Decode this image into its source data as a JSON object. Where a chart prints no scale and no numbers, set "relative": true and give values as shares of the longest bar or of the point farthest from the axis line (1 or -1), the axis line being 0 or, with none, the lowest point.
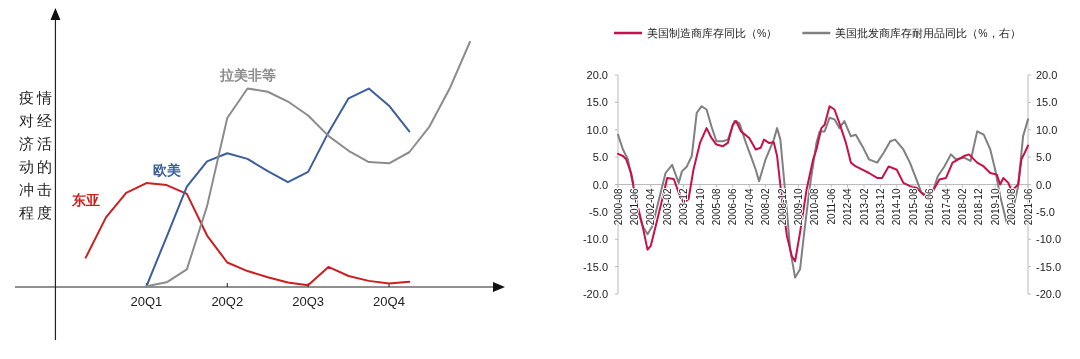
{
  "chart_data": [
    {
      "type": "line",
      "relative": true,
      "ylabel": "疫情对经济活动的冲击程度",
      "categories": [
        null,
        null,
        null,
        null,
        null,
        null,
        "20Q1",
        null,
        null,
        null,
        "20Q2",
        null,
        null,
        null,
        "20Q3",
        null,
        null,
        null,
        "20Q4",
        null,
        null,
        null,
        null
      ],
      "series": [
        {
          "name": "东亚",
          "color": "#cc1f1f",
          "values": [
            null,
            null,
            null,
            0.12,
            0.284,
            0.384,
            0.424,
            0.416,
            0.38,
            0.21,
            0.1,
            0.065,
            0.04,
            0.018,
            0.007,
            0.082,
            0.045,
            0.025,
            0.014,
            0.021,
            null,
            null,
            null
          ]
        },
        {
          "name": "欧美",
          "color": "#3b5e9e",
          "values": [
            null,
            null,
            null,
            null,
            null,
            null,
            0.003,
            0.205,
            0.41,
            0.513,
            0.546,
            0.523,
            0.473,
            0.428,
            0.47,
            0.63,
            0.77,
            0.81,
            0.74,
            0.635,
            null,
            null,
            null
          ]
        },
        {
          "name": "拉美非等",
          "color": "#8c8c8c",
          "values": [
            null,
            null,
            null,
            null,
            null,
            null,
            0.003,
            0.019,
            0.072,
            0.33,
            0.69,
            0.81,
            0.797,
            0.757,
            0.7,
            0.617,
            0.556,
            0.51,
            0.505,
            0.55,
            0.655,
            0.81,
            1.0
          ]
        }
      ]
    },
    {
      "type": "line",
      "legend": "top",
      "xlim": [
        "2000-08",
        "2021-06"
      ],
      "xticks": [
        "2000-08",
        "2001-06",
        "2002-04",
        "2003-02",
        "2003-12",
        "2004-10",
        "2005-08",
        "2006-06",
        "2007-04",
        "2008-02",
        "2008-12",
        "2009-10",
        "2010-08",
        "2011-06",
        "2012-04",
        "2013-02",
        "2013-12",
        "2014-10",
        "2015-08",
        "2016-06",
        "2017-04",
        "2018-02",
        "2018-12",
        "2019-10",
        "2020-08",
        "2021-06"
      ],
      "ylim": [
        -20,
        20
      ],
      "yticks": [
        {
          "value": -20,
          "label": "-20.0"
        },
        {
          "value": -15,
          "label": "-15.0"
        },
        {
          "value": -10,
          "label": "-10.0"
        },
        {
          "value": -5,
          "label": "-5.0"
        },
        {
          "value": 0,
          "label": "0.0"
        },
        {
          "value": 5,
          "label": "5.0"
        },
        {
          "value": 10,
          "label": "10.0"
        },
        {
          "value": 15,
          "label": "15.0"
        },
        {
          "value": 20,
          "label": "20.0"
        }
      ],
      "y2lim": [
        -20,
        20
      ],
      "y2ticks": [
        {
          "value": -20,
          "label": "-20.0"
        },
        {
          "value": -15,
          "label": "-15.0"
        },
        {
          "value": -10,
          "label": "-10.0"
        },
        {
          "value": -5,
          "label": "-5.0"
        },
        {
          "value": 0,
          "label": "0.0"
        },
        {
          "value": 5,
          "label": "5.0"
        },
        {
          "value": 10,
          "label": "10.0"
        },
        {
          "value": 15,
          "label": "15.0"
        },
        {
          "value": 20,
          "label": "20.0"
        }
      ],
      "series": [
        {
          "name": "美国制造商库存同比（%）",
          "color": "#c8104a",
          "x": [
            "2000-08",
            "2000-11",
            "2001-01",
            "2001-04",
            "2001-07",
            "2001-11",
            "2002-02",
            "2002-04",
            "2002-07",
            "2002-11",
            "2003-02",
            "2003-06",
            "2003-09",
            "2003-12",
            "2004-03",
            "2004-06",
            "2004-10",
            "2005-02",
            "2005-05",
            "2005-08",
            "2005-12",
            "2006-03",
            "2006-06",
            "2006-08",
            "2006-11",
            "2007-04",
            "2007-08",
            "2007-11",
            "2008-01",
            "2008-04",
            "2008-07",
            "2008-09",
            "2008-12",
            "2009-03",
            "2009-06",
            "2009-08",
            "2009-11",
            "2010-03",
            "2010-07",
            "2010-09",
            "2010-12",
            "2011-02",
            "2011-05",
            "2011-08",
            "2011-11",
            "2012-03",
            "2012-06",
            "2012-09",
            "2013-01",
            "2013-05",
            "2013-10",
            "2014-01",
            "2014-05",
            "2014-10",
            "2015-02",
            "2015-06",
            "2015-10",
            "2016-02",
            "2016-05",
            "2016-08",
            "2016-12",
            "2017-04",
            "2017-08",
            "2018-03",
            "2018-06",
            "2018-11",
            "2019-03",
            "2019-07",
            "2019-11",
            "2020-01",
            "2020-03",
            "2020-06",
            "2020-08",
            "2020-12",
            "2021-02",
            "2021-04",
            "2021-06"
          ],
          "values": [
            5.6,
            5.2,
            4.6,
            2.1,
            -2.7,
            -7.6,
            -11.9,
            -11.2,
            -7.6,
            -2.7,
            1.2,
            1.0,
            -1.5,
            -3.3,
            -2.7,
            2.7,
            7.6,
            10.3,
            8.5,
            7.3,
            7.0,
            7.6,
            10.9,
            11.6,
            9.7,
            8.5,
            6.4,
            6.7,
            8.2,
            7.6,
            7.7,
            5.2,
            -2.7,
            -9.4,
            -13.1,
            -14.0,
            -8.8,
            -0.9,
            4.6,
            6.4,
            10.3,
            10.9,
            14.3,
            13.7,
            11.2,
            7.6,
            4.0,
            3.3,
            2.7,
            2.1,
            1.2,
            1.2,
            3.3,
            2.7,
            0.3,
            -0.3,
            -0.6,
            -1.8,
            -2.4,
            -1.2,
            0.9,
            1.2,
            4.0,
            5.2,
            5.5,
            4.0,
            3.3,
            2.1,
            1.8,
            0.0,
            1.2,
            0.3,
            -1.2,
            0.0,
            4.6,
            5.8,
            7.1
          ]
        },
        {
          "name": "美国批发商库存耐用品同比（%，右）",
          "color": "#808080",
          "axis": "y2",
          "x": [
            "2000-08",
            "2000-11",
            "2001-02",
            "2001-05",
            "2001-08",
            "2001-11",
            "2002-02",
            "2002-05",
            "2002-09",
            "2003-01",
            "2003-05",
            "2003-09",
            "2003-11",
            "2004-02",
            "2004-05",
            "2004-08",
            "2004-11",
            "2005-02",
            "2005-05",
            "2005-08",
            "2005-12",
            "2006-03",
            "2006-07",
            "2006-10",
            "2007-02",
            "2007-05",
            "2007-08",
            "2007-10",
            "2008-02",
            "2008-07",
            "2008-09",
            "2008-11",
            "2009-02",
            "2009-05",
            "2009-08",
            "2009-11",
            "2010-02",
            "2010-05",
            "2010-09",
            "2010-11",
            "2011-02",
            "2011-05",
            "2011-08",
            "2011-11",
            "2012-02",
            "2012-06",
            "2012-09",
            "2013-01",
            "2013-05",
            "2013-10",
            "2014-02",
            "2014-06",
            "2014-09",
            "2015-02",
            "2015-06",
            "2015-10",
            "2016-01",
            "2016-04",
            "2016-08",
            "2016-11",
            "2017-03",
            "2017-07",
            "2017-10",
            "2018-03",
            "2018-07",
            "2018-11",
            "2019-03",
            "2019-07",
            "2019-10",
            "2020-01",
            "2020-05",
            "2020-08",
            "2020-12",
            "2021-03",
            "2021-06"
          ],
          "values": [
            9.1,
            6.4,
            4.6,
            0.3,
            -4.6,
            -7.6,
            -9.1,
            -7.6,
            -2.7,
            2.1,
            3.6,
            0.3,
            2.4,
            3.3,
            5.2,
            13.1,
            14.3,
            13.7,
            10.6,
            7.9,
            7.9,
            8.2,
            11.6,
            11.2,
            7.6,
            5.2,
            2.7,
            0.6,
            4.6,
            8.2,
            10.3,
            8.2,
            -1.5,
            -11.9,
            -17.0,
            -15.5,
            -7.6,
            -0.3,
            7.6,
            9.7,
            9.7,
            12.2,
            11.9,
            10.3,
            11.6,
            8.8,
            9.1,
            7.0,
            4.6,
            4.0,
            5.8,
            7.9,
            8.2,
            6.4,
            4.0,
            0.9,
            -1.5,
            -1.8,
            -1.2,
            1.5,
            3.3,
            5.5,
            4.6,
            4.9,
            4.3,
            9.7,
            9.1,
            6.4,
            2.7,
            -2.1,
            -7.0,
            -5.8,
            -0.3,
            8.8,
            11.9
          ]
        }
      ]
    }
  ]
}
